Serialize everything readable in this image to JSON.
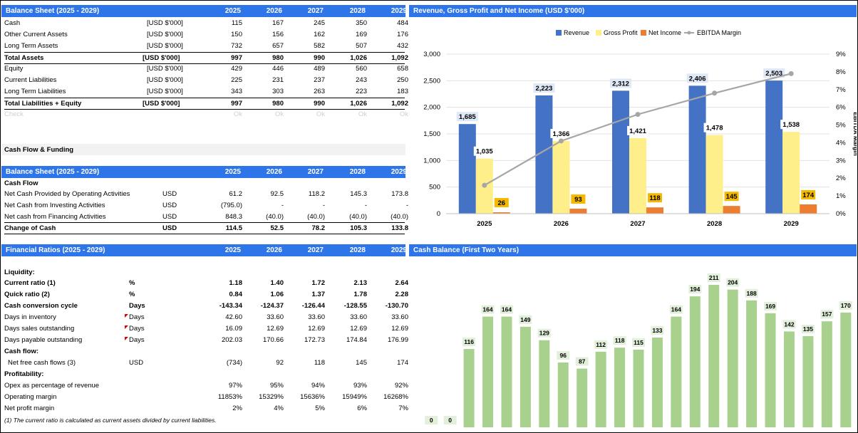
{
  "years": [
    "2025",
    "2026",
    "2027",
    "2028",
    "2029"
  ],
  "balance_sheet": {
    "title": "Balance Sheet (2025 - 2029)",
    "rows": [
      {
        "label": "Cash",
        "unit": "[USD $'000]",
        "values": [
          "115",
          "167",
          "245",
          "350",
          "484"
        ],
        "bold": false
      },
      {
        "label": "Other Current Assets",
        "unit": "[USD $'000]",
        "values": [
          "150",
          "156",
          "162",
          "169",
          "176"
        ],
        "bold": false
      },
      {
        "label": "Long Term Assets",
        "unit": "[USD $'000]",
        "values": [
          "732",
          "657",
          "582",
          "507",
          "432"
        ],
        "bold": false
      },
      {
        "label": "Total Assets",
        "unit": "[USD $'000]",
        "values": [
          "997",
          "980",
          "990",
          "1,026",
          "1,092"
        ],
        "bold": true
      },
      {
        "label": "Equity",
        "unit": "[USD $'000]",
        "values": [
          "429",
          "446",
          "489",
          "560",
          "658"
        ],
        "bold": false
      },
      {
        "label": "Current Liabilities",
        "unit": "[USD $'000]",
        "values": [
          "225",
          "231",
          "237",
          "243",
          "250"
        ],
        "bold": false
      },
      {
        "label": "Long Term Liabilities",
        "unit": "[USD $'000]",
        "values": [
          "343",
          "303",
          "263",
          "223",
          "183"
        ],
        "bold": false
      },
      {
        "label": "Total Liabilities + Equity",
        "unit": "[USD $'000]",
        "values": [
          "997",
          "980",
          "990",
          "1,026",
          "1,092"
        ],
        "bold": true
      }
    ],
    "check": {
      "label": "Check",
      "values": [
        "Ok",
        "Ok",
        "Ok",
        "Ok",
        "Ok"
      ]
    }
  },
  "cash_flow_funding": {
    "label": "Cash Flow & Funding"
  },
  "cash_flow": {
    "title": "Balance Sheet (2025 - 2029)",
    "section": "Cash Flow",
    "rows": [
      {
        "label": "Net Cash Provided by Operating Activities",
        "unit": "USD",
        "values": [
          "61.2",
          "92.5",
          "118.2",
          "145.3",
          "173.8"
        ]
      },
      {
        "label": "Net Cash from Investing Activities",
        "unit": "USD",
        "values": [
          "(795.0)",
          "-",
          "-",
          "-",
          "-"
        ]
      },
      {
        "label": "Net cash from Financing Activities",
        "unit": "USD",
        "values": [
          "848.3",
          "(40.0)",
          "(40.0)",
          "(40.0)",
          "(40.0)"
        ]
      }
    ],
    "total": {
      "label": "Change of Cash",
      "unit": "USD",
      "values": [
        "114.5",
        "52.5",
        "78.2",
        "105.3",
        "133.8"
      ]
    }
  },
  "ratios": {
    "title": "Financial Ratios (2025 - 2029)",
    "liquidity": "Liquidity:",
    "liq_rows": [
      {
        "label": "Current ratio (1)",
        "unit": "%",
        "values": [
          "1.18",
          "1.40",
          "1.72",
          "2.13",
          "2.64"
        ],
        "bold": true,
        "flag": false
      },
      {
        "label": "Quick ratio (2)",
        "unit": "%",
        "values": [
          "0.84",
          "1.06",
          "1.37",
          "1.78",
          "2.28"
        ],
        "bold": true,
        "flag": false
      },
      {
        "label": "Cash conversion cycle",
        "unit": "Days",
        "values": [
          "-143.34",
          "-124.37",
          "-126.44",
          "-128.55",
          "-130.70"
        ],
        "bold": true,
        "flag": false
      },
      {
        "label": "Days in inventory",
        "unit": "Days",
        "values": [
          "42.60",
          "33.60",
          "33.60",
          "33.60",
          "33.60"
        ],
        "bold": false,
        "flag": true
      },
      {
        "label": "Days sales outstanding",
        "unit": "Days",
        "values": [
          "16.09",
          "12.69",
          "12.69",
          "12.69",
          "12.69"
        ],
        "bold": false,
        "flag": true
      },
      {
        "label": "Days payable outstanding",
        "unit": "Days",
        "values": [
          "202.03",
          "170.66",
          "172.73",
          "174.84",
          "176.99"
        ],
        "bold": false,
        "flag": true
      }
    ],
    "cashflow": "Cash flow:",
    "fcf": {
      "label": "Net free cash flows (3)",
      "unit": "USD",
      "values": [
        "(734)",
        "92",
        "118",
        "145",
        "174"
      ]
    },
    "profitability": "Profitability:",
    "prof_rows": [
      {
        "label": "Opex as percentage of revenue",
        "values": [
          "97%",
          "95%",
          "94%",
          "93%",
          "92%"
        ]
      },
      {
        "label": "Operating margin",
        "values": [
          "11853%",
          "15329%",
          "15636%",
          "15949%",
          "16268%"
        ]
      },
      {
        "label": "Net profit margin",
        "values": [
          "2%",
          "4%",
          "5%",
          "6%",
          "7%"
        ]
      }
    ],
    "note1": "(1) The current ratio is calculated as current assets divided by current liabilities."
  },
  "chart1_title": "Revenue, Gross Profit and Net Income (USD $'000)",
  "chart2_title": "Cash Balance (First Two Years)",
  "colors": {
    "header": "#2f75ea",
    "revenue": "#4472c4",
    "gross": "#ffef8a",
    "net": "#ed7d31",
    "ebitda": "#a6a6a6",
    "cash": "#a9d18e"
  },
  "chart_data": [
    {
      "type": "bar",
      "title": "Revenue, Gross Profit and Net Income (USD $'000)",
      "categories": [
        "2025",
        "2026",
        "2027",
        "2028",
        "2029"
      ],
      "series": [
        {
          "name": "Revenue",
          "values": [
            1685,
            2223,
            2312,
            2406,
            2503
          ]
        },
        {
          "name": "Gross Profit",
          "values": [
            1035,
            1366,
            1421,
            1478,
            1538
          ]
        },
        {
          "name": "Net Income",
          "values": [
            26,
            93,
            118,
            145,
            174
          ]
        },
        {
          "name": "EBITDA Margin",
          "type": "line",
          "axis": "right",
          "values": [
            1.6,
            4.1,
            5.6,
            6.8,
            7.9
          ]
        }
      ],
      "ylim": [
        0,
        3000
      ],
      "yticks": [
        "0",
        "500",
        "1,000",
        "1,500",
        "2,000",
        "2,500",
        "3,000"
      ],
      "y2lim": [
        0,
        9
      ],
      "y2ticks": [
        "0%",
        "1%",
        "2%",
        "3%",
        "4%",
        "5%",
        "6%",
        "7%",
        "8%",
        "9%"
      ],
      "y2label": "EBITDA Margin",
      "legend": "top"
    },
    {
      "type": "bar",
      "title": "Cash Balance (First Two Years)",
      "values": [
        0,
        0,
        116,
        164,
        164,
        149,
        129,
        96,
        87,
        112,
        118,
        115,
        133,
        164,
        194,
        211,
        204,
        188,
        169,
        142,
        135,
        157,
        170
      ],
      "ylim": [
        0,
        230
      ]
    }
  ]
}
